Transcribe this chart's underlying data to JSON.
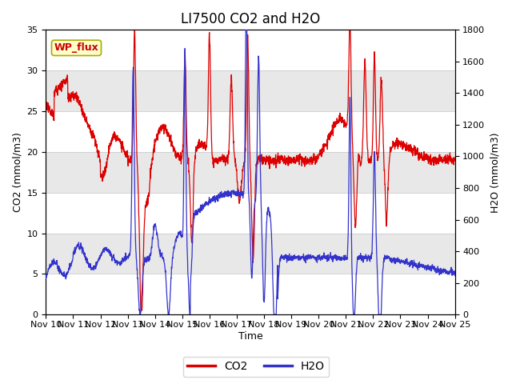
{
  "title": "LI7500 CO2 and H2O",
  "xlabel": "Time",
  "ylabel_left": "CO2 (mmol/m3)",
  "ylabel_right": "H2O (mmol/m3)",
  "ylim_left": [
    0,
    35
  ],
  "ylim_right": [
    0,
    1800
  ],
  "yticks_left": [
    0,
    5,
    10,
    15,
    20,
    25,
    30,
    35
  ],
  "yticks_right": [
    0,
    200,
    400,
    600,
    800,
    1000,
    1200,
    1400,
    1600,
    1800
  ],
  "xstart": 0,
  "xend": 15,
  "xtick_positions": [
    0,
    1,
    2,
    3,
    4,
    5,
    6,
    7,
    8,
    9,
    10,
    11,
    12,
    13,
    14,
    15
  ],
  "xtick_labels": [
    "Nov 10",
    "Nov 11",
    "Nov 12",
    "Nov 13",
    "Nov 14",
    "Nov 15",
    "Nov 16",
    "Nov 17",
    "Nov 18",
    "Nov 19",
    "Nov 20",
    "Nov 21",
    "Nov 22",
    "Nov 23",
    "Nov 24",
    "Nov 25"
  ],
  "co2_color": "#dd0000",
  "h2o_color": "#3333cc",
  "background_color": "#ffffff",
  "plot_bg_color": "#e8e8e8",
  "grid_color": "#ffffff",
  "band_light": "#d8d8d8",
  "band_dark": "#c0c0c0",
  "legend_co2": "CO2",
  "legend_h2o": "H2O",
  "wp_flux_label": "WP_flux",
  "wp_flux_bg": "#ffffcc",
  "wp_flux_border": "#aaaa00",
  "wp_flux_text_color": "#cc0000",
  "title_fontsize": 12,
  "axis_label_fontsize": 9,
  "tick_fontsize": 8,
  "legend_fontsize": 10,
  "linewidth": 0.9
}
